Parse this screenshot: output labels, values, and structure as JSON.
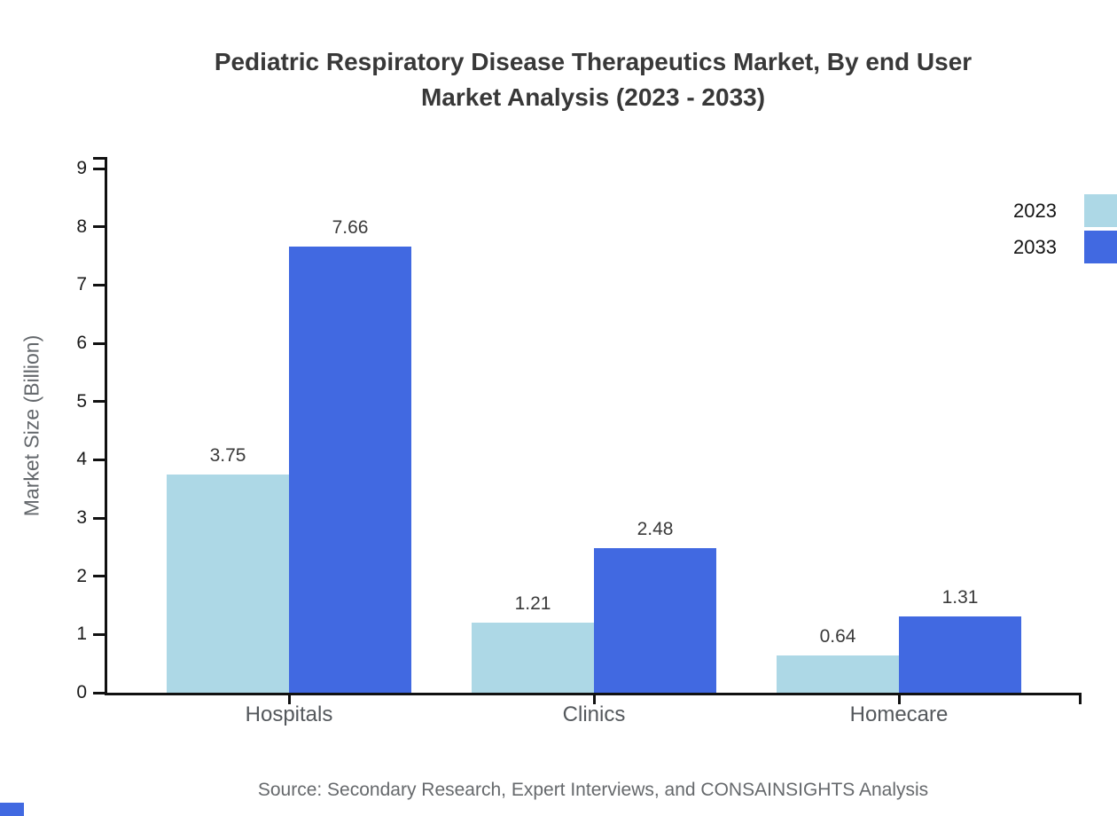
{
  "chart_data": {
    "type": "bar",
    "title": [
      "Pediatric Respiratory Disease Therapeutics Market, By end User",
      "Market Analysis (2023 - 2033)"
    ],
    "ylabel": "Market Size (Billion)",
    "categories": [
      "Hospitals",
      "Clinics",
      "Homecare"
    ],
    "series": [
      {
        "name": "2023",
        "color": "#ADD8E6",
        "values": [
          3.75,
          1.21,
          0.64
        ]
      },
      {
        "name": "2033",
        "color": "#4169E1",
        "values": [
          7.66,
          2.48,
          1.31
        ]
      }
    ],
    "ylim": [
      0,
      9
    ],
    "yticks": [
      0,
      1,
      2,
      3,
      4,
      5,
      6,
      7,
      8,
      9
    ],
    "grid": false,
    "value_labels": true,
    "legend_position": "top-right",
    "axis_color": "#111111",
    "source": "Source: Secondary Research, Expert Interviews, and CONSAINSIGHTS Analysis",
    "brand_color": "#4169E1"
  }
}
